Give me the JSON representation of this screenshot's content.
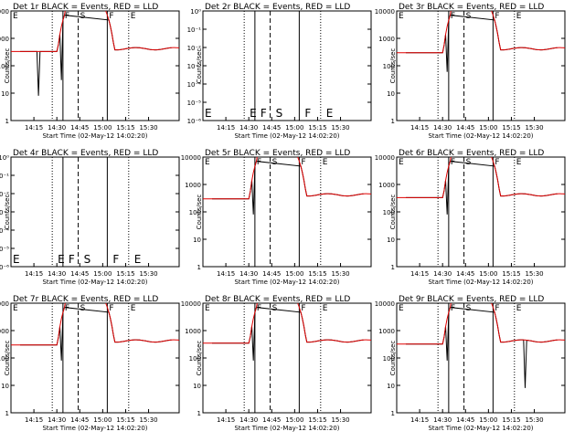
{
  "chart_data": {
    "type": "line",
    "title_template": "Det {n}r  BLACK = Events, RED = LLD",
    "xlabel": "Start Time (02-May-12 14:02:20)",
    "x_tick_labels": [
      "14:15",
      "14:30",
      "14:45",
      "15:00",
      "15:15",
      "15:30"
    ],
    "x_tick_minutes": [
      15,
      30,
      45,
      60,
      75,
      90
    ],
    "x_range_minutes": [
      0,
      110
    ],
    "series": [
      {
        "name": "Events",
        "color": "#000000"
      },
      {
        "name": "LLD",
        "color": "#e00000"
      }
    ],
    "markers": [
      {
        "minute": 27,
        "style": "dotted",
        "letter": "E"
      },
      {
        "minute": 34,
        "style": "solid",
        "letter": "F"
      },
      {
        "minute": 44,
        "style": "dashed",
        "letter": "S"
      },
      {
        "minute": 63,
        "style": "solid",
        "letter": "F"
      },
      {
        "minute": 77,
        "style": "dotted",
        "letter": "E"
      }
    ],
    "panels": [
      {
        "det": "1",
        "title": "Det 1r  BLACK = Events, RED = LLD",
        "kind": "counts",
        "ylabel": "Counts/sec",
        "yticks": [
          "1",
          "10",
          "100",
          "1000",
          "10000"
        ],
        "ylog": [
          0,
          4
        ],
        "baseline": 330,
        "plateau": 420,
        "flare": 10000,
        "dips": [
          [
            18,
            8
          ],
          [
            33,
            30
          ],
          [
            63,
            80
          ]
        ]
      },
      {
        "det": "2",
        "title": "Det 2r  BLACK = Events, RED = LLD",
        "kind": "empty",
        "ylabel": "Counts/sec",
        "yticks": [
          "10⁻⁶",
          "10⁻⁵",
          "10⁻⁴",
          "10⁻³",
          "10⁻²",
          "10⁻¹",
          "10⁰"
        ]
      },
      {
        "det": "3",
        "title": "Det 3r  BLACK = Events, RED = LLD",
        "kind": "counts",
        "ylabel": "Counts/sec",
        "yticks": [
          "1",
          "10",
          "100",
          "1000",
          "10000"
        ],
        "ylog": [
          0,
          4
        ],
        "baseline": 300,
        "plateau": 420,
        "flare": 10000,
        "dips": [
          [
            33,
            60
          ],
          [
            63,
            60
          ]
        ]
      },
      {
        "det": "4",
        "title": "Det 4r  BLACK = Events, RED = LLD",
        "kind": "empty",
        "ylabel": "Counts/sec",
        "yticks": [
          "10⁻⁶",
          "10⁻⁵",
          "10⁻⁴",
          "10⁻³",
          "10⁻²",
          "10⁻¹",
          "10⁰"
        ]
      },
      {
        "det": "5",
        "title": "Det 5r  BLACK = Events, RED = LLD",
        "kind": "counts",
        "ylabel": "Counts/sec",
        "yticks": [
          "1",
          "10",
          "100",
          "1000",
          "10000"
        ],
        "ylog": [
          0,
          4
        ],
        "baseline": 300,
        "plateau": 420,
        "flare": 10000,
        "dips": [
          [
            33,
            80
          ],
          [
            63,
            60
          ]
        ]
      },
      {
        "det": "6",
        "title": "Det 6r  BLACK = Events, RED = LLD",
        "kind": "counts",
        "ylabel": "Counts/sec",
        "yticks": [
          "1",
          "10",
          "100",
          "1000",
          "10000"
        ],
        "ylog": [
          0,
          4
        ],
        "baseline": 330,
        "plateau": 420,
        "flare": 10000,
        "dips": [
          [
            33,
            80
          ],
          [
            63,
            60
          ]
        ]
      },
      {
        "det": "7",
        "title": "Det 7r  BLACK = Events, RED = LLD",
        "kind": "counts",
        "ylabel": "Counts/sec",
        "yticks": [
          "1",
          "10",
          "100",
          "1000",
          "10000"
        ],
        "ylog": [
          0,
          4
        ],
        "baseline": 300,
        "plateau": 420,
        "flare": 10000,
        "dips": [
          [
            33,
            80
          ],
          [
            63,
            60
          ]
        ]
      },
      {
        "det": "8",
        "title": "Det 8r  BLACK = Events, RED = LLD",
        "kind": "counts",
        "ylabel": "Counts/sec",
        "yticks": [
          "1",
          "10",
          "100",
          "1000",
          "10000"
        ],
        "ylog": [
          0,
          4
        ],
        "baseline": 350,
        "plateau": 420,
        "flare": 10000,
        "dips": [
          [
            33,
            80
          ],
          [
            63,
            60
          ]
        ]
      },
      {
        "det": "9",
        "title": "Det 9r  BLACK = Events, RED = LLD",
        "kind": "counts",
        "ylabel": "Counts/sec",
        "yticks": [
          "1",
          "10",
          "100",
          "1000",
          "10000"
        ],
        "ylog": [
          0,
          4
        ],
        "baseline": 320,
        "plateau": 420,
        "flare": 10000,
        "dips": [
          [
            33,
            80
          ],
          [
            63,
            60
          ],
          [
            84,
            8
          ]
        ]
      }
    ]
  }
}
